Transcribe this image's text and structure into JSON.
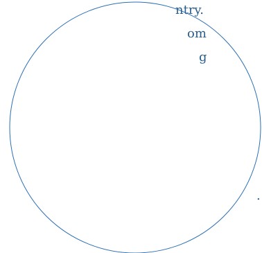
{
  "text_fragments": [
    "ntry.",
    "om",
    "g",
    "."
  ],
  "colors": {
    "text": "#2a5d8c",
    "circle_stroke": "#2a6fb5",
    "background": "#ffffff"
  }
}
